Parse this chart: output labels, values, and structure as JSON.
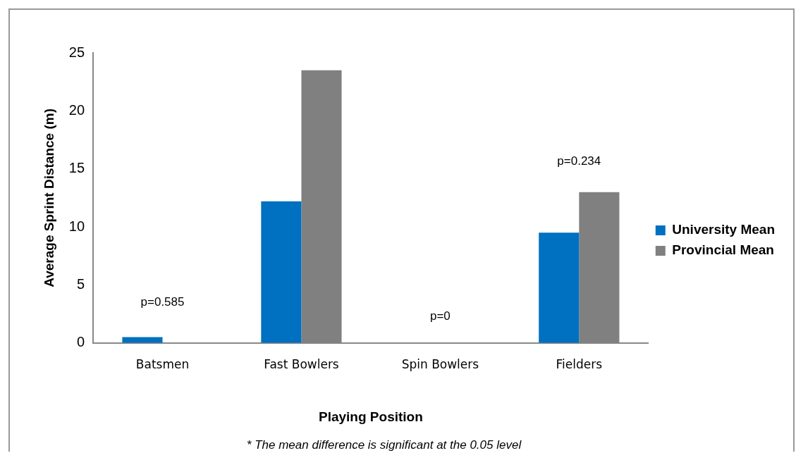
{
  "chart_data": {
    "type": "bar",
    "categories": [
      "Batsmen",
      "Fast Bowlers",
      "Spin Bowlers",
      "Fielders"
    ],
    "series": [
      {
        "name": "University Mean",
        "color": "#0070c0",
        "values": [
          0.5,
          12.2,
          0,
          9.5
        ]
      },
      {
        "name": "Provincial Mean",
        "color": "#808080",
        "values": [
          0,
          23.5,
          0,
          13.0
        ]
      }
    ],
    "xlabel": "Playing Position",
    "ylabel": "Average Sprint Distance (m)",
    "ylim": [
      0,
      25
    ],
    "yticks": [
      0,
      5,
      10,
      15,
      20,
      25
    ],
    "grid": false,
    "legend": "right",
    "annotations": [
      "p=0.585",
      "p=0",
      "p=0.234",
      "* The mean difference is significant at the 0.05 level"
    ]
  }
}
